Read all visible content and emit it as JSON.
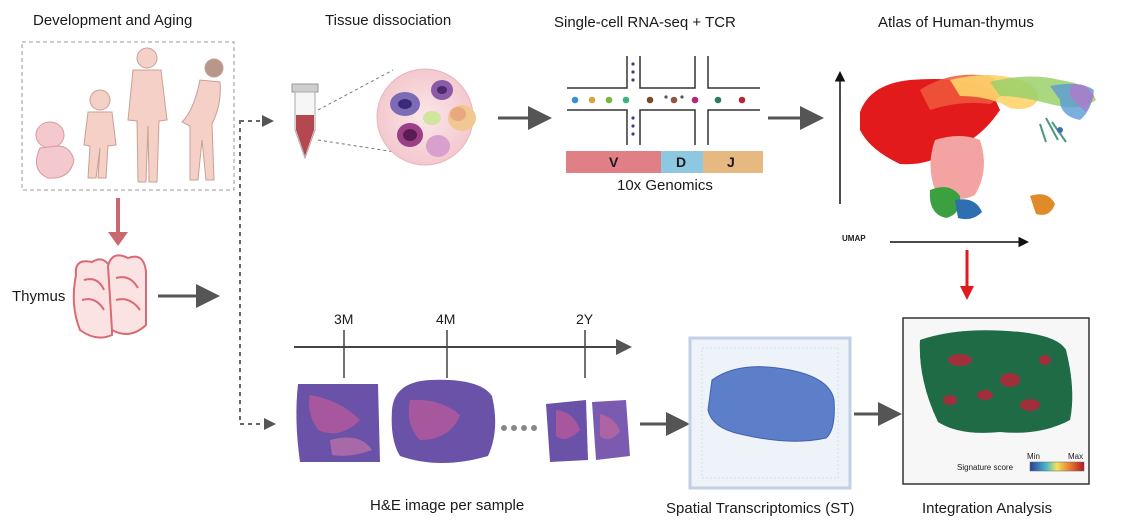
{
  "titles": {
    "development": "Development and Aging",
    "dissociation": "Tissue dissociation",
    "scrna": "Single-cell RNA-seq + TCR",
    "atlas": "Atlas of Human-thymus",
    "thymus": "Thymus",
    "he": "H&E image per sample",
    "st": "Spatial Transcriptomics (ST)",
    "integration": "Integration Analysis"
  },
  "vdj": {
    "v": "V",
    "d": "D",
    "j": "J",
    "platform": "10x Genomics"
  },
  "umap_label": "UMAP",
  "timeline": [
    "3M",
    "4M",
    "2Y"
  ],
  "legend": {
    "title": "Signature score",
    "min": "Min",
    "max": "Max"
  },
  "colors": {
    "arrow": "#555555",
    "pink_arrow": "#c9696f",
    "red_arrow": "#e31a1c",
    "v_segment": "#e07f86",
    "d_segment": "#8ec7e0",
    "j_segment": "#e6b980"
  }
}
